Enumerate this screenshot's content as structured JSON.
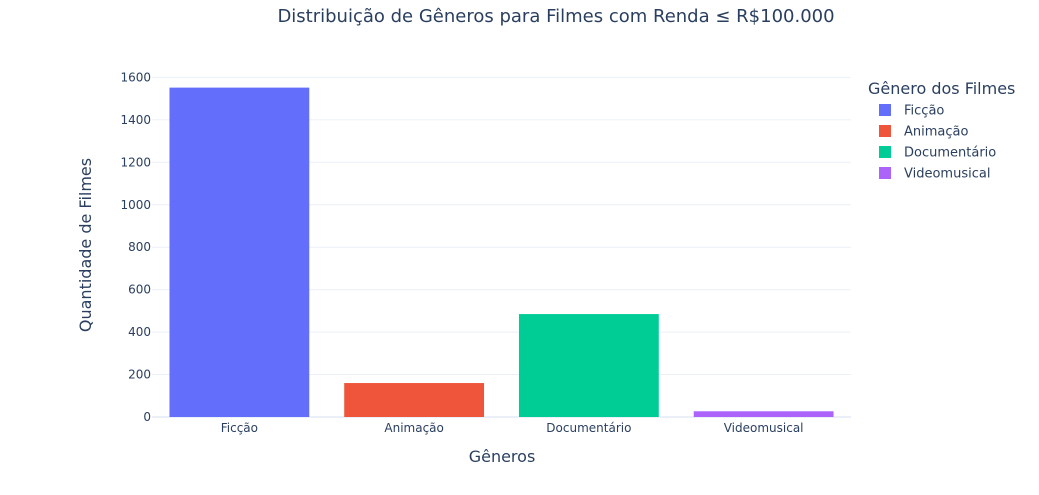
{
  "chart_data": {
    "type": "bar",
    "title": "Distribuição de Gêneros para Filmes com Renda ≤ R$100.000",
    "xlabel": "Gêneros",
    "ylabel": "Quantidade de Filmes",
    "categories": [
      "Ficção",
      "Animação",
      "Documentário",
      "Videomusical"
    ],
    "values": [
      1552,
      160,
      485,
      27
    ],
    "ylim": [
      0,
      1635
    ],
    "yticks": [
      0,
      200,
      400,
      600,
      800,
      1000,
      1200,
      1400,
      1600
    ],
    "grid": true,
    "legend": {
      "title": "Gênero dos Filmes",
      "placement": "top-right",
      "entries": [
        "Ficção",
        "Animação",
        "Documentário",
        "Videomusical"
      ]
    },
    "colors": [
      "#636efa",
      "#ef553b",
      "#00cc96",
      "#ab63fa"
    ]
  }
}
